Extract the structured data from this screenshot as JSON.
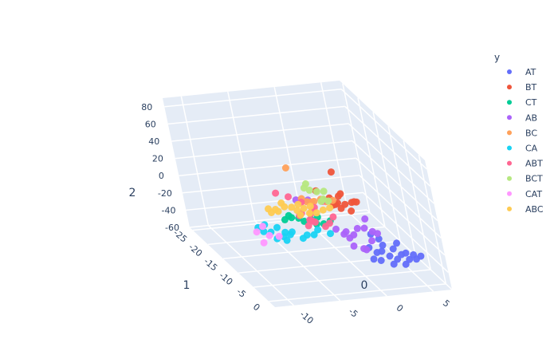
{
  "chart_data": {
    "type": "scatter3d",
    "legend": {
      "title": "y",
      "placement": "right"
    },
    "axes": {
      "x": {
        "title": "0",
        "ticks": [
          "-10",
          "-5",
          "0",
          "5"
        ],
        "range": [
          -12,
          7
        ]
      },
      "y": {
        "title": "1",
        "ticks": [
          "-25",
          "-20",
          "-15",
          "-10",
          "-5",
          "0"
        ],
        "range": [
          -26,
          2
        ]
      },
      "z": {
        "title": "2",
        "ticks": [
          "-60",
          "-40",
          "-20",
          "0",
          "20",
          "40",
          "60",
          "80"
        ],
        "range": [
          -60,
          90
        ]
      }
    },
    "series": [
      {
        "name": "AT",
        "color": "#636efa",
        "points": [
          [
            2,
            -6,
            -38
          ],
          [
            3,
            -5,
            -40
          ],
          [
            4,
            -4,
            -36
          ],
          [
            5,
            -6,
            -42
          ],
          [
            3,
            -7,
            -34
          ],
          [
            2,
            -4,
            -30
          ],
          [
            1,
            -5,
            -28
          ],
          [
            4,
            -3,
            -44
          ],
          [
            5,
            -5,
            -46
          ],
          [
            6,
            -4,
            -40
          ],
          [
            3,
            -3,
            -25
          ],
          [
            2,
            -7,
            -20
          ],
          [
            4,
            -6,
            -48
          ],
          [
            1,
            -4,
            -38
          ],
          [
            5,
            -3,
            -34
          ],
          [
            3,
            -8,
            -30
          ],
          [
            2,
            -5,
            -44
          ],
          [
            6,
            -6,
            -50
          ],
          [
            4,
            -5,
            -26
          ],
          [
            3,
            -4,
            -46
          ]
        ]
      },
      {
        "name": "BT",
        "color": "#ef553b",
        "points": [
          [
            1,
            -17,
            -10
          ],
          [
            0,
            -16,
            -8
          ],
          [
            2,
            -15,
            -12
          ],
          [
            1,
            -14,
            -6
          ],
          [
            3,
            -16,
            -14
          ],
          [
            0,
            -18,
            -4
          ],
          [
            2,
            -17,
            -9
          ],
          [
            1,
            -15,
            -11
          ],
          [
            3,
            -14,
            -7
          ],
          [
            2,
            -13,
            -13
          ],
          [
            0,
            -15,
            -5
          ],
          [
            1,
            -16,
            -15
          ],
          [
            3,
            -15,
            -10
          ],
          [
            2,
            -16,
            -3
          ],
          [
            1,
            -13,
            -9
          ],
          [
            1,
            -14,
            30
          ]
        ]
      },
      {
        "name": "CT",
        "color": "#00cc96",
        "points": [
          [
            -5,
            -3,
            18
          ],
          [
            -6,
            -2,
            20
          ],
          [
            -4,
            -4,
            16
          ],
          [
            -7,
            -3,
            22
          ],
          [
            -5,
            -1,
            19
          ],
          [
            -6,
            -4,
            17
          ],
          [
            -3,
            -3,
            14
          ],
          [
            -8,
            -2,
            24
          ],
          [
            -4,
            -2,
            15
          ],
          [
            -7,
            -4,
            21
          ]
        ]
      },
      {
        "name": "AB",
        "color": "#ab63fa",
        "points": [
          [
            2,
            -12,
            -30
          ],
          [
            1,
            -13,
            -36
          ],
          [
            3,
            -11,
            -42
          ],
          [
            2,
            -10,
            -48
          ],
          [
            1,
            -12,
            -40
          ],
          [
            3,
            -13,
            -34
          ],
          [
            2,
            -14,
            -44
          ],
          [
            4,
            -12,
            -38
          ],
          [
            1,
            -11,
            -46
          ],
          [
            3,
            -10,
            -28
          ],
          [
            0,
            -13,
            -32
          ],
          [
            2,
            -11,
            -50
          ],
          [
            3,
            -12,
            -20
          ],
          [
            1,
            -14,
            -42
          ],
          [
            0,
            -22,
            -28
          ],
          [
            -1,
            -23,
            -30
          ]
        ]
      },
      {
        "name": "BC",
        "color": "#ffa15a",
        "points": [
          [
            -3,
            -8,
            20
          ],
          [
            -2,
            -9,
            18
          ],
          [
            -4,
            -7,
            24
          ],
          [
            -3,
            -9,
            16
          ],
          [
            -2,
            -7,
            22
          ],
          [
            -1,
            -8,
            19
          ],
          [
            -4,
            -9,
            21
          ],
          [
            -6,
            -5,
            72
          ]
        ]
      },
      {
        "name": "CA",
        "color": "#19d3f3",
        "points": [
          [
            -10,
            -1,
            15
          ],
          [
            -9,
            0,
            12
          ],
          [
            -11,
            -2,
            18
          ],
          [
            -8,
            -1,
            10
          ],
          [
            -10,
            1,
            14
          ],
          [
            -9,
            -2,
            16
          ],
          [
            -7,
            0,
            8
          ],
          [
            -11,
            0,
            20
          ],
          [
            -8,
            -3,
            6
          ],
          [
            -6,
            -2,
            4
          ],
          [
            -7,
            -4,
            2
          ],
          [
            -5,
            -3,
            0
          ],
          [
            -9,
            1,
            11
          ],
          [
            -10,
            -3,
            17
          ],
          [
            -4,
            -5,
            -2
          ],
          [
            -3,
            -4,
            -4
          ]
        ]
      },
      {
        "name": "ABT",
        "color": "#ff6692",
        "points": [
          [
            -2,
            -22,
            -22
          ],
          [
            -1,
            -21,
            -26
          ],
          [
            0,
            -20,
            -30
          ],
          [
            -2,
            -19,
            -34
          ],
          [
            -1,
            -18,
            -38
          ],
          [
            0,
            -17,
            -42
          ],
          [
            1,
            -19,
            -46
          ],
          [
            -1,
            -20,
            -50
          ],
          [
            0,
            -21,
            -36
          ],
          [
            -2,
            -18,
            -28
          ],
          [
            1,
            -17,
            -32
          ],
          [
            0,
            -22,
            -44
          ],
          [
            -1,
            -19,
            -40
          ],
          [
            1,
            -20,
            -24
          ],
          [
            -1,
            -17,
            -36
          ],
          [
            -3,
            -23,
            -20
          ]
        ]
      },
      {
        "name": "BCT",
        "color": "#b6e880",
        "points": [
          [
            -3,
            -6,
            38
          ],
          [
            -4,
            -5,
            44
          ],
          [
            -2,
            -7,
            34
          ],
          [
            -3,
            -5,
            30
          ],
          [
            -4,
            -7,
            40
          ],
          [
            -2,
            -6,
            26
          ],
          [
            -3,
            -4,
            36
          ],
          [
            -4,
            -6,
            48
          ]
        ]
      },
      {
        "name": "CAT",
        "color": "#ff97ff",
        "points": [
          [
            -11,
            2,
            22
          ],
          [
            -12,
            1,
            24
          ],
          [
            -10,
            2,
            20
          ],
          [
            -11,
            0,
            26
          ],
          [
            -12,
            3,
            18
          ]
        ]
      },
      {
        "name": "ABC",
        "color": "#fecb52",
        "points": [
          [
            -5,
            -5,
            24
          ],
          [
            -6,
            -4,
            26
          ],
          [
            -4,
            -6,
            22
          ],
          [
            -7,
            -5,
            28
          ],
          [
            -5,
            -3,
            25
          ],
          [
            -6,
            -6,
            23
          ],
          [
            -8,
            -4,
            27
          ],
          [
            -4,
            -4,
            21
          ],
          [
            -7,
            -6,
            29
          ],
          [
            -9,
            -3,
            30
          ],
          [
            -3,
            -5,
            20
          ],
          [
            -8,
            -5,
            26
          ],
          [
            -6,
            -3,
            24
          ],
          [
            -5,
            -7,
            22
          ],
          [
            -9,
            -4,
            31
          ],
          [
            -2,
            -6,
            18
          ]
        ]
      }
    ]
  }
}
